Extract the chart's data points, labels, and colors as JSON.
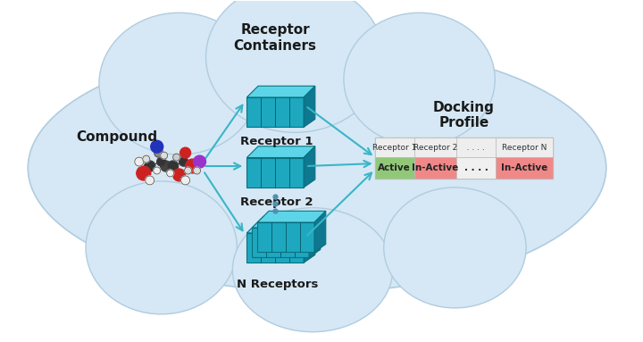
{
  "cloud_color": "#d6e8f5",
  "cloud_edge_color": "#b0cce0",
  "arrow_color": "#3ab5c8",
  "text_color": "#1a1a1a",
  "compound_label": "Compound",
  "receptor_containers_label": "Receptor\nContainers",
  "receptor1_label": "Receptor 1",
  "receptor2_label": "Receptor 2",
  "receptorN_label": "N Receptors",
  "docking_profile_label": "Docking\nProfile",
  "table_headers": [
    "Receptor 1",
    "Receptor 2",
    ". . . .",
    "Receptor N"
  ],
  "table_cells": [
    "Active",
    "In-Active",
    ". . . .",
    "In-Active"
  ],
  "active_color": "#90c878",
  "inactive_color": "#f08888",
  "dots_bg": "#f0f0f0",
  "table_header_bg": "#eeeeee",
  "table_bg": "#f8f8f8",
  "cube_front": "#1ea8c0",
  "cube_top": "#5dd5e8",
  "cube_side": "#0d7890",
  "cube_line": "#0a6070",
  "fig_width": 7.2,
  "fig_height": 3.83,
  "dpi": 100
}
